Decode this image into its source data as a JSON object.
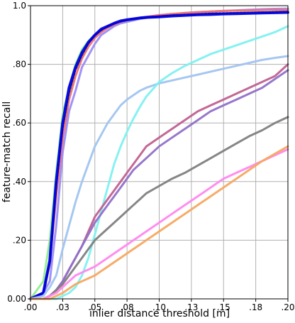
{
  "chart_data": {
    "type": "line",
    "title": "",
    "xlabel": "inlier distance threshold [m]",
    "ylabel": "feature-match recall",
    "xlim": [
      0.0,
      0.2
    ],
    "ylim": [
      0.0,
      1.0
    ],
    "x_ticks": [
      0.0,
      0.025,
      0.05,
      0.075,
      0.1,
      0.125,
      0.15,
      0.175,
      0.2
    ],
    "x_tick_labels": [
      ".00",
      ".03",
      ".05",
      ".08",
      ".10",
      ".13",
      ".15",
      ".18",
      ".20"
    ],
    "y_ticks": [
      0.0,
      0.2,
      0.4,
      0.6,
      0.8,
      1.0
    ],
    "y_tick_labels": [
      "0.00",
      ".20",
      ".40",
      ".60",
      ".80",
      "1.0"
    ],
    "grid": true,
    "x": [
      0.0,
      0.01,
      0.015,
      0.02,
      0.025,
      0.03,
      0.035,
      0.04,
      0.045,
      0.05,
      0.055,
      0.06,
      0.065,
      0.07,
      0.075,
      0.08,
      0.085,
      0.09,
      0.1,
      0.11,
      0.12,
      0.13,
      0.14,
      0.15,
      0.16,
      0.17,
      0.18,
      0.19,
      0.2
    ],
    "series": [
      {
        "color": "#90ee90",
        "width": 3,
        "values": [
          0.0,
          0.06,
          0.2,
          0.43,
          0.63,
          0.72,
          0.8,
          0.85,
          0.88,
          0.9,
          0.915,
          0.93,
          0.935,
          0.94,
          0.945,
          0.95,
          0.955,
          0.96,
          0.965,
          0.965,
          0.968,
          0.97,
          0.972,
          0.973,
          0.975,
          0.976,
          0.977,
          0.978,
          0.98
        ]
      },
      {
        "color": "#9b8cf5",
        "width": 3,
        "values": [
          0.0,
          0.02,
          0.06,
          0.25,
          0.5,
          0.64,
          0.71,
          0.79,
          0.83,
          0.87,
          0.9,
          0.915,
          0.93,
          0.94,
          0.945,
          0.95,
          0.955,
          0.958,
          0.965,
          0.97,
          0.975,
          0.978,
          0.98,
          0.982,
          0.984,
          0.986,
          0.988,
          0.989,
          0.99
        ]
      },
      {
        "color": "#f07070",
        "width": 3,
        "values": [
          0.0,
          0.02,
          0.12,
          0.35,
          0.55,
          0.68,
          0.76,
          0.82,
          0.86,
          0.89,
          0.91,
          0.925,
          0.935,
          0.945,
          0.95,
          0.955,
          0.958,
          0.962,
          0.968,
          0.972,
          0.975,
          0.978,
          0.98,
          0.982,
          0.983,
          0.984,
          0.985,
          0.986,
          0.985
        ]
      },
      {
        "color": "#2a2a5e",
        "width": 2,
        "dash": "3,2",
        "values": [
          0.0,
          0.02,
          0.12,
          0.38,
          0.58,
          0.7,
          0.78,
          0.83,
          0.87,
          0.9,
          0.915,
          0.93,
          0.94,
          0.945,
          0.95,
          0.955,
          0.958,
          0.96,
          0.965,
          0.968,
          0.97,
          0.972,
          0.974,
          0.975,
          0.976,
          0.977,
          0.978,
          0.979,
          0.98
        ]
      },
      {
        "color": "#0000dd",
        "width": 4,
        "values": [
          0.0,
          0.02,
          0.13,
          0.4,
          0.6,
          0.72,
          0.79,
          0.84,
          0.875,
          0.9,
          0.92,
          0.93,
          0.94,
          0.948,
          0.952,
          0.955,
          0.958,
          0.96,
          0.962,
          0.965,
          0.967,
          0.969,
          0.97,
          0.972,
          0.973,
          0.974,
          0.975,
          0.976,
          0.977
        ]
      },
      {
        "color": "#a0c4f0",
        "width": 3,
        "values": [
          0.0,
          0.01,
          0.04,
          0.08,
          0.17,
          0.25,
          0.33,
          0.4,
          0.46,
          0.52,
          0.56,
          0.6,
          0.63,
          0.66,
          0.68,
          0.695,
          0.71,
          0.72,
          0.735,
          0.745,
          0.755,
          0.765,
          0.775,
          0.785,
          0.795,
          0.805,
          0.815,
          0.822,
          0.828
        ]
      },
      {
        "color": "#80f0f0",
        "width": 3,
        "values": [
          0.0,
          0.0,
          0.0,
          0.0,
          0.01,
          0.02,
          0.04,
          0.08,
          0.14,
          0.22,
          0.3,
          0.38,
          0.46,
          0.52,
          0.57,
          0.615,
          0.655,
          0.69,
          0.74,
          0.77,
          0.795,
          0.815,
          0.835,
          0.85,
          0.865,
          0.88,
          0.895,
          0.91,
          0.93
        ]
      },
      {
        "color": "#c06090",
        "width": 3,
        "values": [
          0.0,
          0.0,
          0.01,
          0.03,
          0.06,
          0.1,
          0.14,
          0.18,
          0.23,
          0.28,
          0.31,
          0.34,
          0.37,
          0.4,
          0.43,
          0.46,
          0.49,
          0.52,
          0.55,
          0.58,
          0.61,
          0.64,
          0.66,
          0.68,
          0.7,
          0.72,
          0.74,
          0.76,
          0.8
        ]
      },
      {
        "color": "#9070c8",
        "width": 3,
        "values": [
          0.0,
          0.0,
          0.01,
          0.03,
          0.06,
          0.1,
          0.14,
          0.18,
          0.22,
          0.26,
          0.29,
          0.32,
          0.35,
          0.38,
          0.41,
          0.44,
          0.46,
          0.48,
          0.52,
          0.55,
          0.58,
          0.61,
          0.64,
          0.66,
          0.68,
          0.7,
          0.72,
          0.75,
          0.78
        ]
      },
      {
        "color": "#808080",
        "width": 3,
        "values": [
          0.0,
          0.0,
          0.01,
          0.03,
          0.05,
          0.08,
          0.11,
          0.14,
          0.17,
          0.2,
          0.22,
          0.24,
          0.26,
          0.28,
          0.3,
          0.32,
          0.34,
          0.36,
          0.385,
          0.41,
          0.43,
          0.455,
          0.48,
          0.505,
          0.53,
          0.555,
          0.575,
          0.6,
          0.62
        ]
      },
      {
        "color": "#ff88ee",
        "width": 3,
        "values": [
          0.0,
          0.0,
          0.01,
          0.02,
          0.04,
          0.06,
          0.08,
          0.09,
          0.1,
          0.11,
          0.125,
          0.14,
          0.155,
          0.17,
          0.185,
          0.2,
          0.215,
          0.23,
          0.26,
          0.29,
          0.32,
          0.35,
          0.38,
          0.41,
          0.43,
          0.45,
          0.47,
          0.49,
          0.51
        ]
      },
      {
        "color": "#f5a860",
        "width": 3,
        "values": [
          0.0,
          0.0,
          0.0,
          0.01,
          0.02,
          0.035,
          0.05,
          0.06,
          0.07,
          0.08,
          0.095,
          0.11,
          0.125,
          0.14,
          0.155,
          0.17,
          0.185,
          0.2,
          0.23,
          0.26,
          0.29,
          0.32,
          0.35,
          0.38,
          0.41,
          0.44,
          0.47,
          0.495,
          0.52
        ]
      }
    ]
  }
}
